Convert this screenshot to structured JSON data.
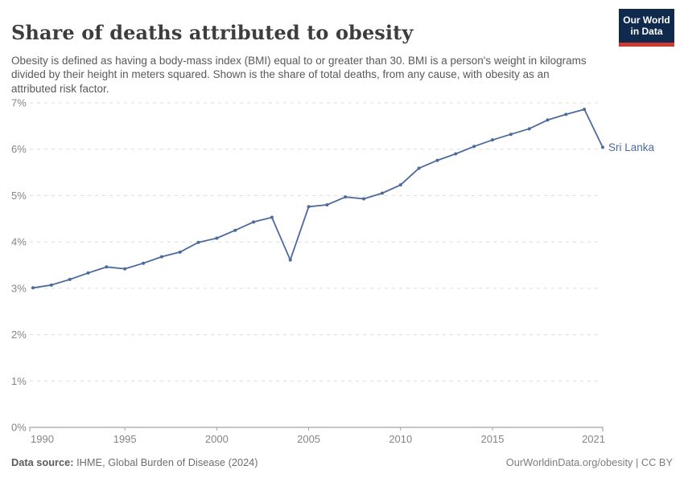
{
  "header": {
    "title": "Share of deaths attributed to obesity",
    "subtitle": "Obesity is defined as having a body-mass index (BMI) equal to or greater than 30. BMI is a person's weight in kilograms divided by their height in meters squared. Shown is the share of total deaths, from any cause, with obesity as an attributed risk factor.",
    "logo": {
      "line1": "Our World",
      "line2": "in Data",
      "bg_color": "#102a4e",
      "accent_color": "#cf3a30"
    }
  },
  "chart_data": {
    "type": "line",
    "title": "Share of deaths attributed to obesity",
    "entity": "Sri Lanka",
    "unit": "%",
    "x": [
      1990,
      1991,
      1992,
      1993,
      1994,
      1995,
      1996,
      1997,
      1998,
      1999,
      2000,
      2001,
      2002,
      2003,
      2004,
      2005,
      2006,
      2007,
      2008,
      2009,
      2010,
      2011,
      2012,
      2013,
      2014,
      2015,
      2016,
      2017,
      2018,
      2019,
      2020,
      2021
    ],
    "series": [
      {
        "name": "Sri Lanka",
        "values": [
          3.01,
          3.07,
          3.19,
          3.33,
          3.46,
          3.42,
          3.54,
          3.68,
          3.78,
          3.99,
          4.08,
          4.25,
          4.43,
          4.53,
          3.61,
          4.76,
          4.8,
          4.97,
          4.93,
          5.05,
          5.23,
          5.59,
          5.76,
          5.9,
          6.06,
          6.2,
          6.32,
          6.44,
          6.63,
          6.75,
          6.86,
          6.04
        ]
      }
    ],
    "xlabel": "",
    "ylabel": "",
    "ylim": [
      0,
      7
    ],
    "yticks": [
      0,
      1,
      2,
      3,
      4,
      5,
      6,
      7
    ],
    "ytick_suffix": "%",
    "xticks": [
      1990,
      1995,
      2000,
      2005,
      2010,
      2015,
      2021
    ],
    "grid": true,
    "legend_position": "end-of-line-label",
    "line_color": "#4c6a9c",
    "grid_color": "#dcdcdc",
    "axis_color": "#a3a3a3",
    "tick_label_color": "#858585"
  },
  "footer": {
    "datasource_label": "Data source:",
    "datasource_value": " IHME, Global Burden of Disease (2024)",
    "credit": "OurWorldinData.org/obesity | CC BY"
  }
}
